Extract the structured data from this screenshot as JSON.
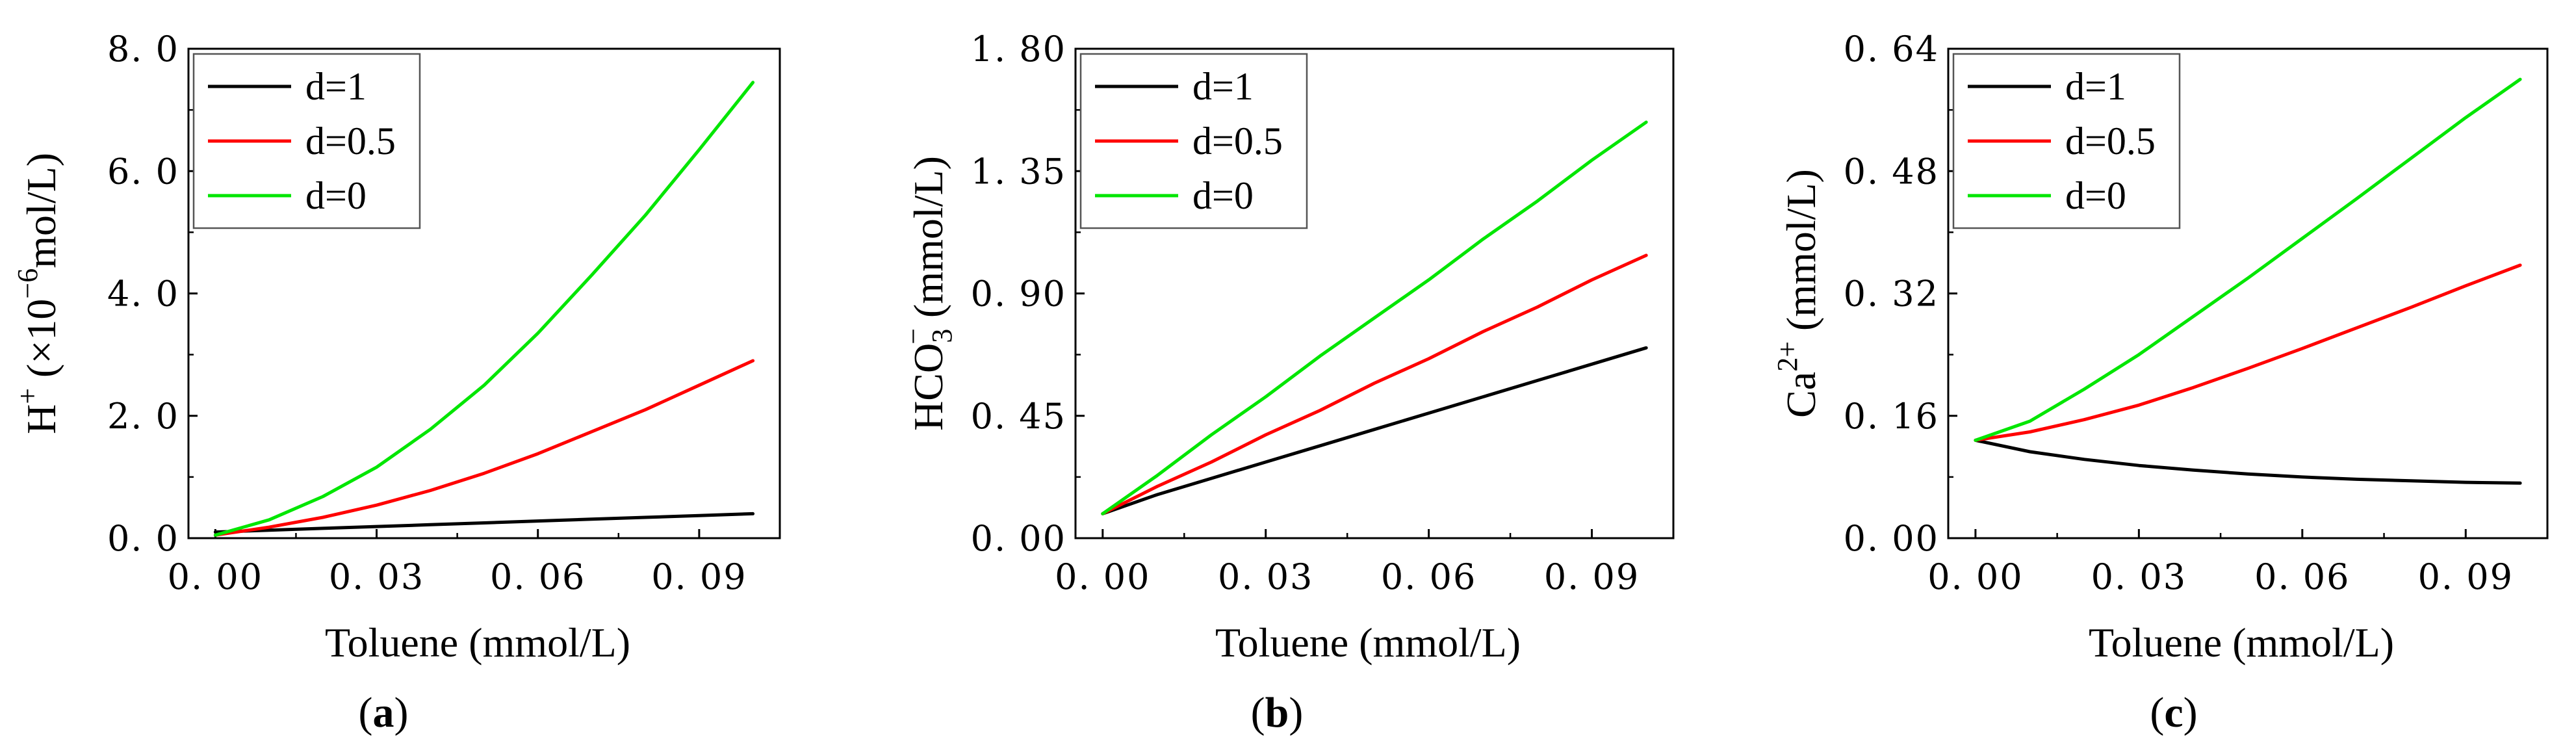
{
  "colors": {
    "d1": "#000000",
    "d05": "#ff0000",
    "d0": "#00e600"
  },
  "chart_data": [
    {
      "type": "line",
      "panel": "a",
      "panel_label": "a",
      "xlabel": "Toluene (mmol/L)",
      "ylabel": {
        "base": "H",
        "sup": "+",
        "rest1": " (×10",
        "sup2": "−6",
        "rest2": "mol/L)"
      },
      "xlim": [
        -0.005,
        0.105
      ],
      "ylim": [
        0,
        8.0
      ],
      "xticks": [
        0.0,
        0.03,
        0.06,
        0.09
      ],
      "xtick_labels": [
        "0. 00",
        "0. 03",
        "0. 06",
        "0. 09"
      ],
      "yticks": [
        0,
        2,
        4,
        6,
        8
      ],
      "ytick_labels": [
        "0. 0",
        "2. 0",
        "4. 0",
        "6. 0",
        "8. 0"
      ],
      "x": [
        0,
        0.01,
        0.02,
        0.03,
        0.04,
        0.05,
        0.06,
        0.07,
        0.08,
        0.09,
        0.1
      ],
      "series": [
        {
          "name": "d=1",
          "color": "#000000",
          "values": [
            0.1,
            0.13,
            0.16,
            0.19,
            0.22,
            0.25,
            0.28,
            0.31,
            0.34,
            0.37,
            0.4
          ]
        },
        {
          "name": "d=0.5",
          "color": "#ff0000",
          "values": [
            0.05,
            0.18,
            0.34,
            0.54,
            0.78,
            1.06,
            1.38,
            1.74,
            2.1,
            2.5,
            2.9
          ]
        },
        {
          "name": "d=0",
          "color": "#00e600",
          "values": [
            0.05,
            0.3,
            0.68,
            1.16,
            1.78,
            2.5,
            3.35,
            4.3,
            5.28,
            6.35,
            7.45
          ]
        }
      ],
      "legend": {
        "position": "top-left",
        "entries": [
          "d=1",
          "d=0.5",
          "d=0"
        ]
      }
    },
    {
      "type": "line",
      "panel": "b",
      "panel_label": "b",
      "xlabel": "Toluene (mmol/L)",
      "ylabel": {
        "base": "HCO",
        "sub": "3",
        "sup": "−",
        "rest": " (mmol/L)"
      },
      "xlim": [
        -0.005,
        0.105
      ],
      "ylim": [
        0,
        1.8
      ],
      "xticks": [
        0.0,
        0.03,
        0.06,
        0.09
      ],
      "xtick_labels": [
        "0. 00",
        "0. 03",
        "0. 06",
        "0. 09"
      ],
      "yticks": [
        0,
        0.45,
        0.9,
        1.35,
        1.8
      ],
      "ytick_labels": [
        "0. 00",
        "0. 45",
        "0. 90",
        "1. 35",
        "1. 80"
      ],
      "x": [
        0,
        0.01,
        0.02,
        0.03,
        0.04,
        0.05,
        0.06,
        0.07,
        0.08,
        0.09,
        0.1
      ],
      "series": [
        {
          "name": "d=1",
          "color": "#000000",
          "values": [
            0.09,
            0.16,
            0.22,
            0.28,
            0.34,
            0.4,
            0.46,
            0.52,
            0.58,
            0.64,
            0.7
          ]
        },
        {
          "name": "d=0.5",
          "color": "#ff0000",
          "values": [
            0.09,
            0.19,
            0.28,
            0.38,
            0.47,
            0.57,
            0.66,
            0.76,
            0.85,
            0.95,
            1.04
          ]
        },
        {
          "name": "d=0",
          "color": "#00e600",
          "values": [
            0.09,
            0.23,
            0.38,
            0.52,
            0.67,
            0.81,
            0.95,
            1.1,
            1.24,
            1.39,
            1.53
          ]
        }
      ],
      "legend": {
        "position": "top-left",
        "entries": [
          "d=1",
          "d=0.5",
          "d=0"
        ]
      }
    },
    {
      "type": "line",
      "panel": "c",
      "panel_label": "c",
      "xlabel": "Toluene (mmol/L)",
      "ylabel": {
        "base": "Ca",
        "sup": "2+",
        "rest": " (mmol/L)"
      },
      "xlim": [
        -0.005,
        0.105
      ],
      "ylim": [
        0,
        0.64
      ],
      "xticks": [
        0.0,
        0.03,
        0.06,
        0.09
      ],
      "xtick_labels": [
        "0. 00",
        "0. 03",
        "0. 06",
        "0. 09"
      ],
      "yticks": [
        0,
        0.16,
        0.32,
        0.48,
        0.64
      ],
      "ytick_labels": [
        "0. 00",
        "0. 16",
        "0. 32",
        "0. 48",
        "0. 64"
      ],
      "x": [
        0,
        0.01,
        0.02,
        0.03,
        0.04,
        0.05,
        0.06,
        0.07,
        0.08,
        0.09,
        0.1
      ],
      "series": [
        {
          "name": "d=1",
          "color": "#000000",
          "values": [
            0.128,
            0.113,
            0.103,
            0.095,
            0.089,
            0.084,
            0.08,
            0.077,
            0.075,
            0.073,
            0.072
          ]
        },
        {
          "name": "d=0.5",
          "color": "#ff0000",
          "values": [
            0.128,
            0.139,
            0.155,
            0.174,
            0.197,
            0.222,
            0.248,
            0.275,
            0.302,
            0.33,
            0.357
          ]
        },
        {
          "name": "d=0",
          "color": "#00e600",
          "values": [
            0.128,
            0.153,
            0.195,
            0.24,
            0.29,
            0.34,
            0.392,
            0.444,
            0.497,
            0.55,
            0.6
          ]
        }
      ],
      "legend": {
        "position": "top-left",
        "entries": [
          "d=1",
          "d=0.5",
          "d=0"
        ]
      }
    }
  ]
}
